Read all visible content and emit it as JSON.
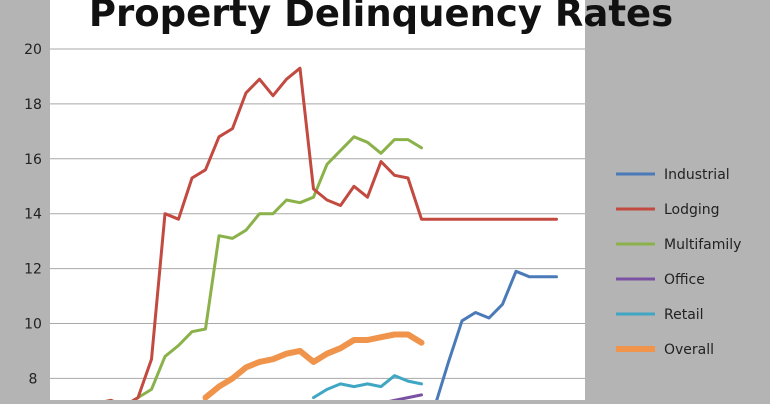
{
  "chart_data": {
    "type": "line",
    "title": "Property Delinquency Rates",
    "xlabel": "",
    "ylabel": "",
    "ylim": [
      7.3,
      20
    ],
    "yticks": [
      8,
      10,
      12,
      14,
      16,
      18,
      20
    ],
    "grid": true,
    "legend_position": "right",
    "series": [
      {
        "name": "Industrial",
        "color": "#4a7ab8",
        "width": 3,
        "x": [
          26,
          27,
          28,
          29,
          30,
          31,
          32,
          33,
          34,
          35
        ],
        "values": [
          7.0,
          8.6,
          10.1,
          10.4,
          10.2,
          10.7,
          11.9,
          11.7,
          11.7,
          11.7
        ]
      },
      {
        "name": "Lodging",
        "color": "#c24a40",
        "width": 3,
        "x": [
          0,
          1,
          2,
          3,
          4,
          5,
          6,
          7,
          8,
          9,
          10,
          11,
          12,
          13,
          14,
          15,
          16,
          17,
          18,
          19,
          20,
          21,
          22,
          23,
          24,
          25,
          26,
          27,
          28,
          29,
          30,
          31,
          32,
          33,
          34,
          35
        ],
        "values": [
          7.0,
          7.1,
          7.2,
          7.0,
          7.3,
          8.7,
          14.0,
          13.8,
          15.3,
          15.6,
          16.8,
          17.1,
          18.4,
          18.9,
          18.3,
          18.9,
          19.3,
          14.9,
          14.5,
          14.3,
          15.0,
          14.6,
          15.9,
          15.4,
          15.3,
          13.8,
          13.8,
          13.8,
          13.8,
          13.8,
          13.8,
          13.8,
          13.8,
          13.8,
          13.8,
          13.8
        ]
      },
      {
        "name": "Multifamily",
        "color": "#8bb24a",
        "width": 3,
        "x": [
          0,
          1,
          2,
          3,
          4,
          5,
          6,
          7,
          8,
          9,
          10,
          11,
          12,
          13,
          14,
          15,
          16,
          17,
          18,
          19,
          20,
          21,
          22,
          23,
          24,
          25
        ],
        "values": [
          7.0,
          7.1,
          7.2,
          7.0,
          7.3,
          7.6,
          8.8,
          9.2,
          9.7,
          9.8,
          13.2,
          13.1,
          13.4,
          14.0,
          14.0,
          14.5,
          14.4,
          14.6,
          15.8,
          16.3,
          16.8,
          16.6,
          16.2,
          16.7,
          16.7,
          16.4
        ]
      },
      {
        "name": "Office",
        "color": "#7b52a3",
        "width": 3,
        "x": [
          22,
          23,
          24,
          25
        ],
        "values": [
          7.1,
          7.2,
          7.3,
          7.4
        ]
      },
      {
        "name": "Retail",
        "color": "#3fa6c4",
        "width": 3,
        "x": [
          17,
          18,
          19,
          20,
          21,
          22,
          23,
          24,
          25
        ],
        "values": [
          7.3,
          7.6,
          7.8,
          7.7,
          7.8,
          7.7,
          8.1,
          7.9,
          7.8
        ]
      },
      {
        "name": "Overall",
        "color": "#f0944c",
        "width": 6,
        "x": [
          9,
          10,
          11,
          12,
          13,
          14,
          15,
          16,
          17,
          18,
          19,
          20,
          21,
          22,
          23,
          24,
          25
        ],
        "values": [
          7.3,
          7.7,
          8.0,
          8.4,
          8.6,
          8.7,
          8.9,
          9.0,
          8.6,
          8.9,
          9.1,
          9.4,
          9.4,
          9.5,
          9.6,
          9.6,
          9.3
        ]
      }
    ]
  }
}
